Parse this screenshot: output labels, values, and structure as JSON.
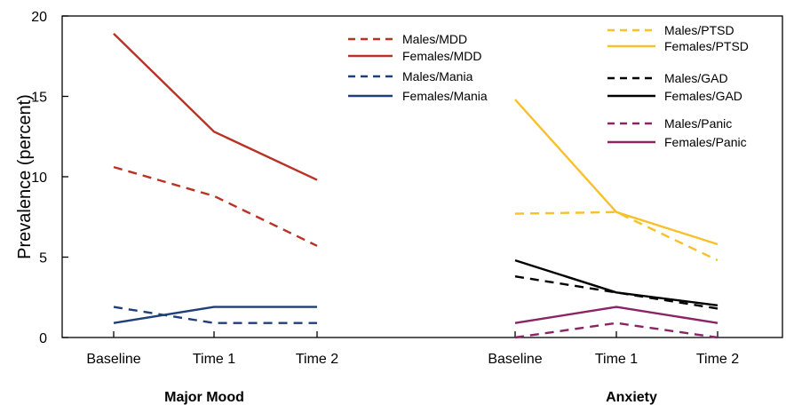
{
  "chart_data": {
    "type": "line",
    "title": "",
    "xlabel": "",
    "ylabel": "Prevalence (percent)",
    "ylim": [
      0,
      20
    ],
    "yticks": [
      0,
      5,
      10,
      15,
      20
    ],
    "grid": false,
    "legend_position": "top-center (one block per panel)",
    "panels": [
      {
        "group_label": "Major Mood",
        "categories": [
          "Baseline",
          "Time 1",
          "Time 2"
        ],
        "series": [
          {
            "name": "Males/MDD",
            "color": "#b83225",
            "dash": "dashed",
            "values": [
              10.6,
              8.8,
              5.7
            ]
          },
          {
            "name": "Females/MDD",
            "color": "#b83225",
            "dash": "solid",
            "values": [
              18.9,
              12.8,
              9.8
            ]
          },
          {
            "name": "Males/Mania",
            "color": "#1f3f7a",
            "dash": "dashed",
            "values": [
              1.9,
              0.9,
              0.9
            ]
          },
          {
            "name": "Females/Mania",
            "color": "#1f3f7a",
            "dash": "solid",
            "values": [
              0.9,
              1.9,
              1.9
            ]
          }
        ]
      },
      {
        "group_label": "Anxiety",
        "categories": [
          "Baseline",
          "Time 1",
          "Time 2"
        ],
        "series": [
          {
            "name": "Males/PTSD",
            "color": "#f8c12c",
            "dash": "dashed",
            "values": [
              7.7,
              7.8,
              4.8
            ]
          },
          {
            "name": "Females/PTSD",
            "color": "#f8c12c",
            "dash": "solid",
            "values": [
              14.8,
              7.8,
              5.8
            ]
          },
          {
            "name": "Males/GAD",
            "color": "#000000",
            "dash": "dashed",
            "values": [
              3.8,
              2.8,
              1.8
            ]
          },
          {
            "name": "Females/GAD",
            "color": "#000000",
            "dash": "solid",
            "values": [
              4.8,
              2.8,
              2.0
            ]
          },
          {
            "name": "Males/Panic",
            "color": "#8a2467",
            "dash": "dashed",
            "values": [
              0.0,
              0.9,
              0.0
            ]
          },
          {
            "name": "Females/Panic",
            "color": "#8a2467",
            "dash": "solid",
            "values": [
              0.9,
              1.9,
              0.9
            ]
          }
        ]
      }
    ]
  }
}
